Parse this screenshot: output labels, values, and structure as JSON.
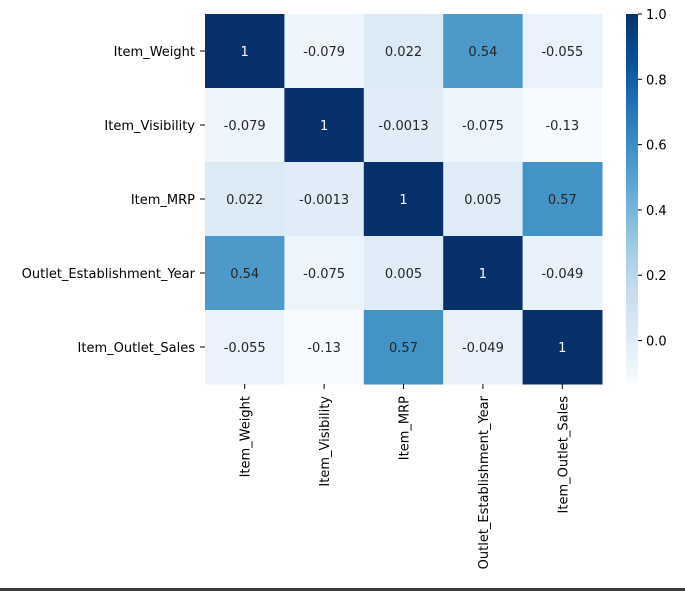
{
  "chart_data": {
    "type": "heatmap",
    "title": "",
    "xlabel": "",
    "ylabel": "",
    "rows": [
      "Item_Weight",
      "Item_Visibility",
      "Item_MRP",
      "Outlet_Establishment_Year",
      "Item_Outlet_Sales"
    ],
    "columns": [
      "Item_Weight",
      "Item_Visibility",
      "Item_MRP",
      "Outlet_Establishment_Year",
      "Item_Outlet_Sales"
    ],
    "values": [
      [
        1,
        -0.079,
        0.022,
        0.54,
        -0.055
      ],
      [
        -0.079,
        1,
        -0.0013,
        -0.075,
        -0.13
      ],
      [
        0.022,
        -0.0013,
        1,
        0.005,
        0.57
      ],
      [
        0.54,
        -0.075,
        0.005,
        1,
        -0.049
      ],
      [
        -0.055,
        -0.13,
        0.57,
        -0.049,
        1
      ]
    ],
    "annotations": [
      [
        "1",
        "-0.079",
        "0.022",
        "0.54",
        "-0.055"
      ],
      [
        "-0.079",
        "1",
        "-0.0013",
        "-0.075",
        "-0.13"
      ],
      [
        "0.022",
        "-0.0013",
        "1",
        "0.005",
        "0.57"
      ],
      [
        "0.54",
        "-0.075",
        "0.005",
        "1",
        "-0.049"
      ],
      [
        "-0.055",
        "-0.13",
        "0.57",
        "-0.049",
        "1"
      ]
    ],
    "colormap": "Blues",
    "color_range": [
      -0.13,
      1.0
    ],
    "colorbar": {
      "ticks": [
        1.0,
        0.8,
        0.6,
        0.4,
        0.2,
        0.0
      ],
      "tick_labels": [
        "1.0",
        "0.8",
        "0.6",
        "0.4",
        "0.2",
        "0.0"
      ]
    },
    "colors": {
      "low": "#f7fbff",
      "high": "#08306b",
      "annotation_dark_text": "#262626",
      "annotation_light_text": "#ffffff"
    }
  }
}
